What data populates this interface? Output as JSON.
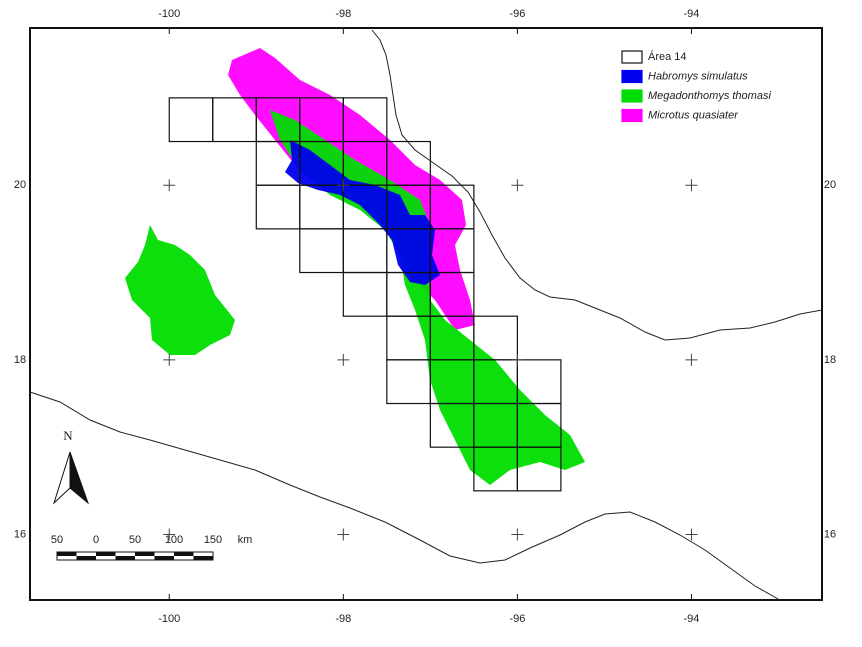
{
  "map": {
    "xlim": [
      -101.6,
      -92.5
    ],
    "ylim": [
      15.25,
      21.8
    ],
    "xticks": [
      -100,
      -98,
      -96,
      -94
    ],
    "yticks": [
      20,
      18,
      16
    ],
    "legend": [
      {
        "label": "Área 14",
        "color": "#ffffff"
      },
      {
        "label": "Habromys simulatus",
        "color": "#0000ee"
      },
      {
        "label": "Megadonthomys thomasi",
        "color": "#00dd00"
      },
      {
        "label": "Microtus quasiater",
        "color": "#ff00ff"
      }
    ],
    "north": "N",
    "scale_bar": {
      "labels": [
        50,
        0,
        50,
        100,
        150
      ],
      "unit": "km"
    }
  }
}
